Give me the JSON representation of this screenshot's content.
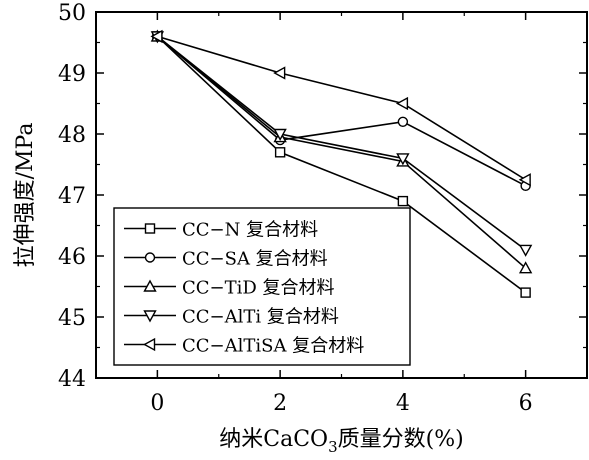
{
  "chart_data": {
    "type": "line",
    "x": [
      0,
      2,
      4,
      6
    ],
    "xticks": [
      0,
      2,
      4,
      6
    ],
    "yticks": [
      44,
      45,
      46,
      47,
      48,
      49,
      50
    ],
    "xlim": [
      -1,
      7
    ],
    "ylim": [
      44,
      50
    ],
    "grid": false,
    "legend_position": "bottom-left",
    "xlabel": "纳米CaCO",
    "xlabel_subscript": "3",
    "xlabel_suffix": "质量分数(%)",
    "ylabel": "拉伸强度/MPa",
    "series": [
      {
        "name": "CC−N 复合材料",
        "marker": "square",
        "values": [
          49.6,
          47.7,
          46.9,
          45.4
        ]
      },
      {
        "name": "CC−SA 复合材料",
        "marker": "circle",
        "values": [
          49.6,
          47.9,
          48.2,
          47.15
        ]
      },
      {
        "name": "CC−TiD 复合材料",
        "marker": "triangle-up",
        "values": [
          49.6,
          47.95,
          47.55,
          45.8
        ]
      },
      {
        "name": "CC−AlTi 复合材料",
        "marker": "triangle-down",
        "values": [
          49.6,
          48.0,
          47.6,
          46.1
        ]
      },
      {
        "name": "CC−AlTiSA 复合材料",
        "marker": "triangle-left",
        "values": [
          49.6,
          49.0,
          48.5,
          47.25
        ]
      }
    ]
  }
}
